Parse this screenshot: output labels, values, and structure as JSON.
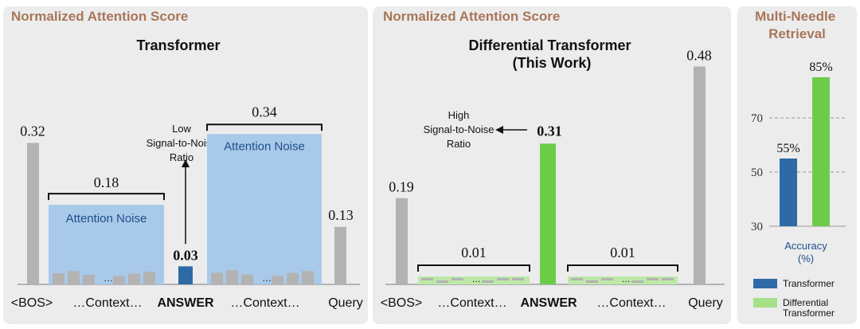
{
  "colors": {
    "gray_bar": "#b3b3b3",
    "blue_bar": "#2e6aa6",
    "green_bar": "#6ccc48",
    "noise_fill": "#a9c9ea",
    "green_noise_fill": "#bde8a8",
    "panel_bg": "#ececec",
    "title_brown": "#a8765a"
  },
  "chart_data": [
    {
      "type": "bar",
      "panel_title": "Normalized Attention Score",
      "title": "Transformer",
      "categories": [
        "<BOS>",
        "…Context…",
        "ANSWER",
        "…Context…",
        "Query"
      ],
      "values": [
        0.32,
        0.18,
        0.03,
        0.34,
        0.13
      ],
      "value_labels": [
        "0.32",
        "0.18",
        "0.03",
        "0.34",
        "0.13"
      ],
      "noise_label": "Attention Noise",
      "ellipsis": "…",
      "annotation": "Low\nSignal-to-Noise\nRatio"
    },
    {
      "type": "bar",
      "panel_title": "Normalized Attention Score",
      "title": "Differential Transformer\n(This Work)",
      "categories": [
        "<BOS>",
        "…Context…",
        "ANSWER",
        "…Context…",
        "Query"
      ],
      "values": [
        0.19,
        0.01,
        0.31,
        0.01,
        0.48
      ],
      "value_labels": [
        "0.19",
        "0.01",
        "0.31",
        "0.01",
        "0.48"
      ],
      "ellipsis": "…",
      "annotation": "High\nSignal-to-Noise\nRatio"
    },
    {
      "type": "bar",
      "panel_title": "Multi-Needle\nRetrieval",
      "ylabel": "Accuracy\n(%)",
      "ylim": [
        30,
        90
      ],
      "yticks": [
        30,
        50,
        70
      ],
      "grid": true,
      "series": [
        {
          "name": "Transformer",
          "values": [
            55
          ],
          "label": "55%"
        },
        {
          "name": "Differential\nTransformer",
          "values": [
            85
          ],
          "label": "85%"
        }
      ]
    }
  ]
}
